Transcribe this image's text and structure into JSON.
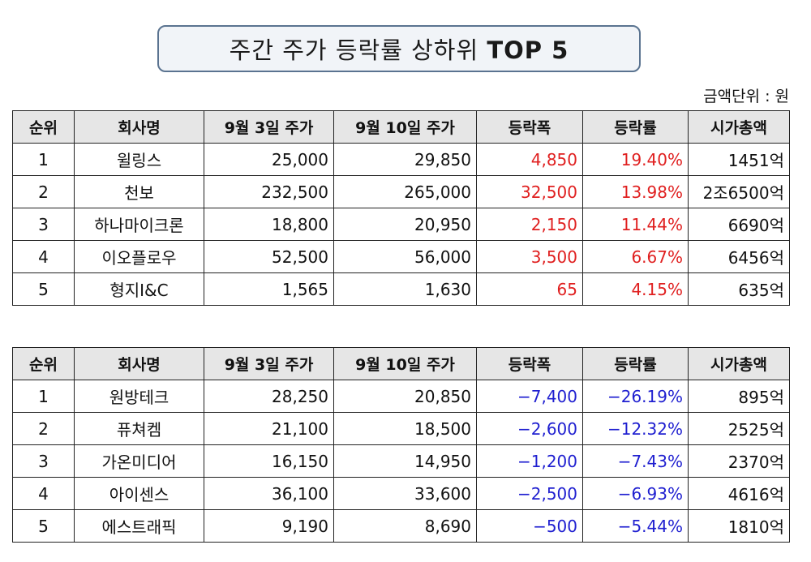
{
  "title": {
    "text": "주간 주가 등락률 상하위 ",
    "bold": "TOP 5"
  },
  "unit_label": "금액단위 : 원",
  "headers": [
    "순위",
    "회사명",
    "9월 3일 주가",
    "9월 10일 주가",
    "등락폭",
    "등락률",
    "시가총액"
  ],
  "colors": {
    "up": "#e02020",
    "down": "#1f1fd0",
    "header_bg": "#e6e6e6"
  },
  "top_gainers": [
    {
      "rank": "1",
      "name": "윌링스",
      "price_0903": "25,000",
      "price_0910": "29,850",
      "change": "4,850",
      "rate": "19.40%",
      "market_cap": "1451억"
    },
    {
      "rank": "2",
      "name": "천보",
      "price_0903": "232,500",
      "price_0910": "265,000",
      "change": "32,500",
      "rate": "13.98%",
      "market_cap": "2조6500억"
    },
    {
      "rank": "3",
      "name": "하나마이크론",
      "price_0903": "18,800",
      "price_0910": "20,950",
      "change": "2,150",
      "rate": "11.44%",
      "market_cap": "6690억"
    },
    {
      "rank": "4",
      "name": "이오플로우",
      "price_0903": "52,500",
      "price_0910": "56,000",
      "change": "3,500",
      "rate": "6.67%",
      "market_cap": "6456억"
    },
    {
      "rank": "5",
      "name": "형지I&C",
      "price_0903": "1,565",
      "price_0910": "1,630",
      "change": "65",
      "rate": "4.15%",
      "market_cap": "635억"
    }
  ],
  "top_losers": [
    {
      "rank": "1",
      "name": "원방테크",
      "price_0903": "28,250",
      "price_0910": "20,850",
      "change": "−7,400",
      "rate": "−26.19%",
      "market_cap": "895억"
    },
    {
      "rank": "2",
      "name": "퓨쳐켐",
      "price_0903": "21,100",
      "price_0910": "18,500",
      "change": "−2,600",
      "rate": "−12.32%",
      "market_cap": "2525억"
    },
    {
      "rank": "3",
      "name": "가온미디어",
      "price_0903": "16,150",
      "price_0910": "14,950",
      "change": "−1,200",
      "rate": "−7.43%",
      "market_cap": "2370억"
    },
    {
      "rank": "4",
      "name": "아이센스",
      "price_0903": "36,100",
      "price_0910": "33,600",
      "change": "−2,500",
      "rate": "−6.93%",
      "market_cap": "4616억"
    },
    {
      "rank": "5",
      "name": "에스트래픽",
      "price_0903": "9,190",
      "price_0910": "8,690",
      "change": "−500",
      "rate": "−5.44%",
      "market_cap": "1810억"
    }
  ]
}
